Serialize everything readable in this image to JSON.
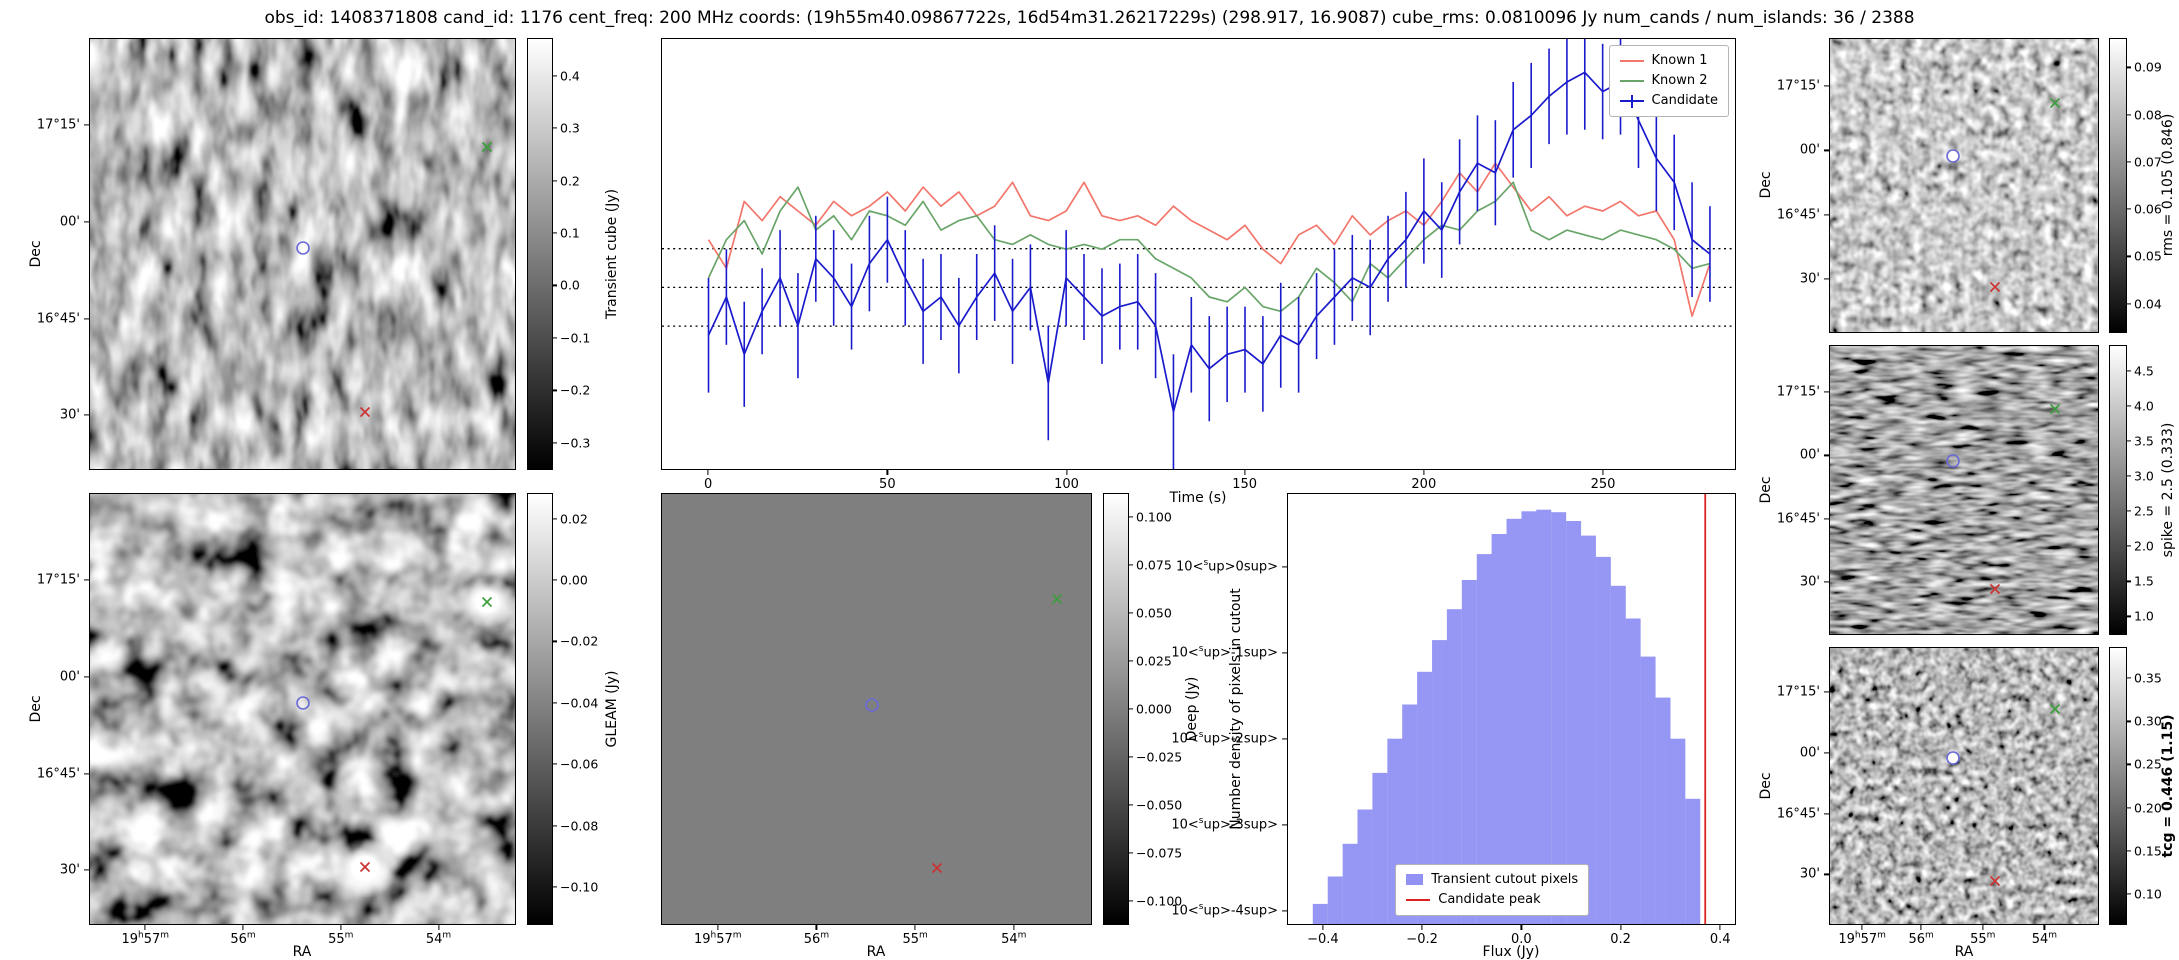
{
  "title": "obs_id: 1408371808 cand_id: 1176 cent_freq: 200 MHz coords: (19h55m40.09867722s, 16d54m31.26217229s) (298.917, 16.9087) cube_rms: 0.0810096 Jy num_cands / num_islands: 36 / 2388",
  "axes": {
    "dec_left": {
      "label": "Dec",
      "ticks": [
        {
          "label": "17°15'",
          "f": 0.2
        },
        {
          "label": "00'",
          "f": 0.425
        },
        {
          "label": "16°45'",
          "f": 0.65
        },
        {
          "label": "30'",
          "f": 0.875
        }
      ]
    },
    "dec_right": {
      "label": "Dec",
      "ticks": [
        {
          "label": "17°15'",
          "f": 0.16
        },
        {
          "label": "00'",
          "f": 0.38
        },
        {
          "label": "16°45'",
          "f": 0.6
        },
        {
          "label": "30'",
          "f": 0.82
        }
      ]
    },
    "ra_left": {
      "label": "RA",
      "ticks": [
        {
          "label": "19h57m",
          "f": 0.13
        },
        {
          "label": "56m",
          "f": 0.36
        },
        {
          "label": "55m",
          "f": 0.59
        },
        {
          "label": "54m",
          "f": 0.82
        }
      ]
    },
    "ra_right": {
      "label": "RA",
      "ticks": [
        {
          "label": "19h57m",
          "f": 0.12
        },
        {
          "label": "56m",
          "f": 0.34
        },
        {
          "label": "55m",
          "f": 0.57
        },
        {
          "label": "54m",
          "f": 0.8
        }
      ]
    },
    "time": {
      "ticks": [
        {
          "label": "0",
          "f": 0.043
        },
        {
          "label": "50",
          "f": 0.21
        },
        {
          "label": "100",
          "f": 0.377
        },
        {
          "label": "150",
          "f": 0.543
        },
        {
          "label": "200",
          "f": 0.71
        },
        {
          "label": "250",
          "f": 0.877
        }
      ]
    },
    "flux": {
      "ticks": [
        {
          "label": "−0.4",
          "f": 0.078
        },
        {
          "label": "−0.2",
          "f": 0.3
        },
        {
          "label": "0.0",
          "f": 0.522
        },
        {
          "label": "0.2",
          "f": 0.744
        },
        {
          "label": "0.4",
          "f": 0.967
        }
      ]
    },
    "density": {
      "ticks": [
        {
          "label": "10^0",
          "f": 0.169
        },
        {
          "label": "10^-1",
          "f": 0.369
        },
        {
          "label": "10^-2",
          "f": 0.569
        },
        {
          "label": "10^-3",
          "f": 0.769
        },
        {
          "label": "10^-4",
          "f": 0.969
        }
      ]
    }
  },
  "colorbars": {
    "transient_cube": {
      "label": "Transient cube (Jy)",
      "vmin": -0.35,
      "vmax": 0.47,
      "ticks": [
        {
          "label": "0.4",
          "value": 0.4
        },
        {
          "label": "0.3",
          "value": 0.3
        },
        {
          "label": "0.2",
          "value": 0.2
        },
        {
          "label": "0.1",
          "value": 0.1
        },
        {
          "label": "0.0",
          "value": 0.0
        },
        {
          "label": "−0.1",
          "value": -0.1
        },
        {
          "label": "−0.2",
          "value": -0.2
        },
        {
          "label": "−0.3",
          "value": -0.3
        }
      ]
    },
    "gleam": {
      "label": "GLEAM (Jy)",
      "vmin": -0.112,
      "vmax": 0.028,
      "ticks": [
        {
          "label": "0.02",
          "value": 0.02
        },
        {
          "label": "0.00",
          "value": 0.0
        },
        {
          "label": "−0.02",
          "value": -0.02
        },
        {
          "label": "−0.04",
          "value": -0.04
        },
        {
          "label": "−0.06",
          "value": -0.06
        },
        {
          "label": "−0.08",
          "value": -0.08
        },
        {
          "label": "−0.10",
          "value": -0.1
        }
      ]
    },
    "deep": {
      "label": "Deep (Jy)",
      "vmin": -0.112,
      "vmax": 0.112,
      "ticks": [
        {
          "label": "0.100",
          "value": 0.1
        },
        {
          "label": "0.075",
          "value": 0.075
        },
        {
          "label": "0.050",
          "value": 0.05
        },
        {
          "label": "0.025",
          "value": 0.025
        },
        {
          "label": "0.000",
          "value": 0.0
        },
        {
          "label": "−0.025",
          "value": -0.025
        },
        {
          "label": "−0.050",
          "value": -0.05
        },
        {
          "label": "−0.075",
          "value": -0.075
        },
        {
          "label": "−0.100",
          "value": -0.1
        }
      ]
    },
    "rms": {
      "label": "rms = 0.105 (0.846)",
      "vmin": 0.034,
      "vmax": 0.096,
      "ticks": [
        {
          "label": "0.09",
          "value": 0.09
        },
        {
          "label": "0.08",
          "value": 0.08
        },
        {
          "label": "0.07",
          "value": 0.07
        },
        {
          "label": "0.06",
          "value": 0.06
        },
        {
          "label": "0.05",
          "value": 0.05
        },
        {
          "label": "0.04",
          "value": 0.04
        }
      ]
    },
    "spike": {
      "label": "spike = 2.5 (0.333)",
      "vmin": 0.75,
      "vmax": 4.85,
      "ticks": [
        {
          "label": "4.5",
          "value": 4.5
        },
        {
          "label": "4.0",
          "value": 4.0
        },
        {
          "label": "3.5",
          "value": 3.5
        },
        {
          "label": "3.0",
          "value": 3.0
        },
        {
          "label": "2.5",
          "value": 2.5
        },
        {
          "label": "2.0",
          "value": 2.0
        },
        {
          "label": "1.5",
          "value": 1.5
        },
        {
          "label": "1.0",
          "value": 1.0
        }
      ]
    },
    "tcg": {
      "label": "tcg = 0.446 (1.15)",
      "vmin": 0.065,
      "vmax": 0.385,
      "ticks": [
        {
          "label": "0.35",
          "value": 0.35
        },
        {
          "label": "0.30",
          "value": 0.3
        },
        {
          "label": "0.25",
          "value": 0.25
        },
        {
          "label": "0.20",
          "value": 0.2
        },
        {
          "label": "0.15",
          "value": 0.15
        },
        {
          "label": "0.10",
          "value": 0.1
        }
      ]
    }
  },
  "markers": {
    "colors": {
      "candidate": "#6b6bd8",
      "known_green": "#3d9e3d",
      "known_red": "#cc3333"
    },
    "left": {
      "candidate": {
        "x": 0.5,
        "y": 0.485
      },
      "green": {
        "x": 0.935,
        "y": 0.25
      },
      "red": {
        "x": 0.648,
        "y": 0.868
      }
    },
    "deep": {
      "candidate": {
        "x": 0.49,
        "y": 0.49
      },
      "green": {
        "x": 0.92,
        "y": 0.245
      },
      "red": {
        "x": 0.64,
        "y": 0.87
      }
    },
    "right": {
      "candidate": {
        "x": 0.46,
        "y": 0.4
      },
      "green": {
        "x": 0.84,
        "y": 0.22
      },
      "red": {
        "x": 0.615,
        "y": 0.845
      }
    }
  },
  "chart_data": [
    {
      "type": "line",
      "title": "",
      "xlabel": "Time (s)",
      "ylabel": "",
      "xlim": [
        -13,
        287
      ],
      "ylim": [
        -0.38,
        0.52
      ],
      "xticks": [
        0,
        50,
        100,
        150,
        200,
        250
      ],
      "hlines": [
        0.081,
        0.0,
        -0.081
      ],
      "legend_position": "top-right",
      "x": [
        0,
        5,
        10,
        15,
        20,
        25,
        30,
        35,
        40,
        45,
        50,
        55,
        60,
        65,
        70,
        75,
        80,
        85,
        90,
        95,
        100,
        105,
        110,
        115,
        120,
        125,
        130,
        135,
        140,
        145,
        150,
        155,
        160,
        165,
        170,
        175,
        180,
        185,
        190,
        195,
        200,
        205,
        210,
        215,
        220,
        225,
        230,
        235,
        240,
        245,
        250,
        255,
        260,
        265,
        270,
        275,
        280
      ],
      "series": [
        {
          "name": "Known 1",
          "color": "#f2766b",
          "y": [
            0.1,
            0.04,
            0.18,
            0.14,
            0.19,
            0.16,
            0.13,
            0.18,
            0.15,
            0.17,
            0.2,
            0.16,
            0.21,
            0.17,
            0.2,
            0.15,
            0.17,
            0.22,
            0.15,
            0.14,
            0.16,
            0.22,
            0.15,
            0.14,
            0.15,
            0.13,
            0.17,
            0.14,
            0.12,
            0.1,
            0.13,
            0.08,
            0.05,
            0.11,
            0.13,
            0.09,
            0.15,
            0.11,
            0.14,
            0.16,
            0.13,
            0.18,
            0.24,
            0.2,
            0.26,
            0.21,
            0.16,
            0.19,
            0.15,
            0.17,
            0.16,
            0.18,
            0.15,
            0.16,
            0.1,
            -0.06,
            0.05
          ]
        },
        {
          "name": "Known 2",
          "color": "#69a569",
          "y": [
            0.02,
            0.1,
            0.14,
            0.07,
            0.16,
            0.21,
            0.12,
            0.15,
            0.1,
            0.16,
            0.15,
            0.13,
            0.18,
            0.12,
            0.14,
            0.15,
            0.1,
            0.09,
            0.11,
            0.09,
            0.08,
            0.09,
            0.08,
            0.1,
            0.1,
            0.06,
            0.04,
            0.02,
            -0.02,
            -0.03,
            0.0,
            -0.04,
            -0.05,
            -0.02,
            0.04,
            0.01,
            -0.03,
            0.05,
            0.02,
            0.06,
            0.1,
            0.13,
            0.12,
            0.16,
            0.18,
            0.22,
            0.12,
            0.1,
            0.12,
            0.11,
            0.1,
            0.12,
            0.11,
            0.1,
            0.08,
            0.04,
            0.05
          ]
        },
        {
          "name": "Candidate",
          "color": "#1a1acd",
          "y": [
            -0.1,
            -0.02,
            -0.14,
            -0.05,
            0.02,
            -0.08,
            0.06,
            0.02,
            -0.04,
            0.05,
            0.1,
            0.02,
            -0.05,
            -0.02,
            -0.08,
            -0.02,
            0.03,
            -0.05,
            0.0,
            -0.2,
            0.02,
            -0.02,
            -0.06,
            -0.04,
            -0.03,
            -0.08,
            -0.26,
            -0.12,
            -0.17,
            -0.14,
            -0.13,
            -0.16,
            -0.1,
            -0.12,
            -0.06,
            -0.02,
            0.02,
            0.0,
            0.06,
            0.1,
            0.16,
            0.12,
            0.2,
            0.26,
            0.24,
            0.33,
            0.36,
            0.4,
            0.43,
            0.45,
            0.41,
            0.43,
            0.35,
            0.27,
            0.22,
            0.1,
            0.07
          ],
          "yerr": [
            0.12,
            0.1,
            0.11,
            0.09,
            0.1,
            0.11,
            0.09,
            0.1,
            0.09,
            0.1,
            0.09,
            0.1,
            0.11,
            0.09,
            0.1,
            0.09,
            0.1,
            0.11,
            0.09,
            0.12,
            0.1,
            0.09,
            0.1,
            0.09,
            0.1,
            0.11,
            0.12,
            0.1,
            0.11,
            0.1,
            0.09,
            0.1,
            0.11,
            0.1,
            0.09,
            0.1,
            0.09,
            0.1,
            0.09,
            0.1,
            0.11,
            0.1,
            0.11,
            0.1,
            0.11,
            0.1,
            0.11,
            0.1,
            0.11,
            0.12,
            0.1,
            0.11,
            0.1,
            0.11,
            0.1,
            0.12,
            0.1
          ]
        }
      ]
    },
    {
      "type": "histogram",
      "title": "",
      "xlabel": "Flux (Jy)",
      "ylabel": "Number density of pixels in cutout",
      "yscale": "log",
      "xlim": [
        -0.47,
        0.43
      ],
      "ylim": [
        7e-05,
        7
      ],
      "xticks": [
        -0.4,
        -0.2,
        0.0,
        0.2,
        0.4
      ],
      "bin_start": -0.42,
      "bin_width": 0.03,
      "bar_color": "#6e6ef0",
      "values": [
        0.00012,
        0.00025,
        0.0006,
        0.0015,
        0.004,
        0.01,
        0.025,
        0.06,
        0.14,
        0.32,
        0.7,
        1.4,
        2.4,
        3.6,
        4.4,
        4.6,
        4.3,
        3.4,
        2.3,
        1.3,
        0.6,
        0.25,
        0.09,
        0.03,
        0.01,
        0.002,
        0,
        0
      ],
      "vline": {
        "x": 0.37,
        "color": "#dd2222",
        "label": "Candidate peak"
      },
      "legend": [
        "Transient cutout pixels",
        "Candidate peak"
      ],
      "legend_position": "bottom-center"
    }
  ]
}
